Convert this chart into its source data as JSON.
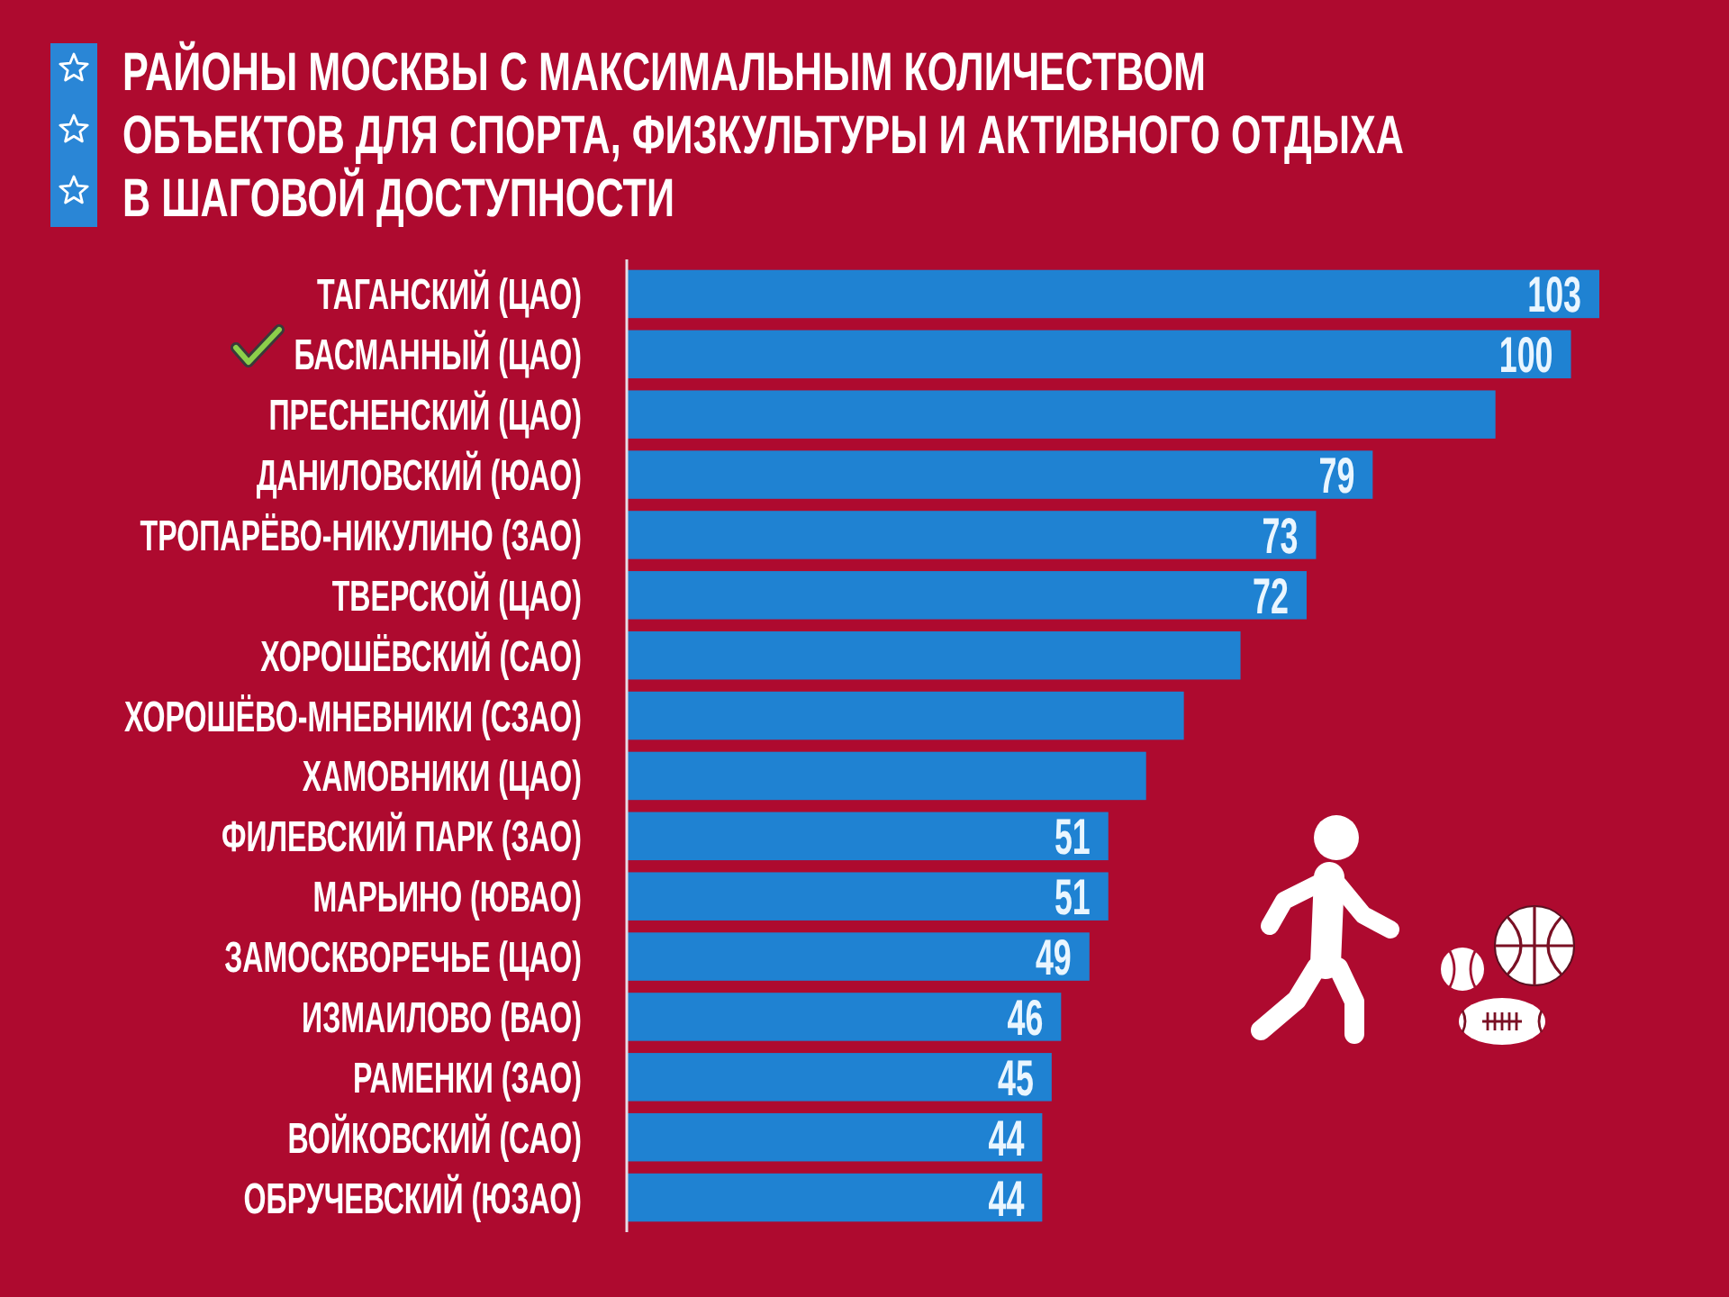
{
  "chart_data": {
    "type": "bar",
    "orientation": "horizontal",
    "title": "РАЙОНЫ МОСКВЫ С МАКСИМАЛЬНЫМ КОЛИЧЕСТВОМ\nОБЪЕКТОВ ДЛЯ СПОРТА, ФИЗКУЛЬТУРЫ И АКТИВНОГО ОТДЫХА\nВ ШАГОВОЙ ДОСТУПНОСТИ",
    "categories": [
      "ТАГАНСКИЙ (ЦАО)",
      "БАСМАННЫЙ (ЦАО)",
      "ПРЕСНЕНСКИЙ (ЦАО)",
      "ДАНИЛОВСКИЙ (ЮАО)",
      "ТРОПАРЁВО-НИКУЛИНО (ЗАО)",
      "ТВЕРСКОЙ (ЦАО)",
      "ХОРОШЁВСКИЙ (САО)",
      "ХОРОШЁВО-МНЕВНИКИ (СЗАО)",
      "ХАМОВНИКИ (ЦАО)",
      "ФИЛЕВСКИЙ ПАРК (ЗАО)",
      "МАРЬИНО (ЮВАО)",
      "ЗАМОСКВОРЕЧЬЕ (ЦАО)",
      "ИЗМАИЛОВО (ВАО)",
      "РАМЕНКИ (ЗАО)",
      "ВОЙКОВСКИЙ (САО)",
      "ОБРУЧЕВСКИЙ (ЮЗАО)"
    ],
    "values": [
      103,
      100,
      92,
      79,
      73,
      72,
      65,
      59,
      55,
      51,
      51,
      49,
      46,
      45,
      44,
      44
    ],
    "color": "#1f82d2",
    "value_labels": [
      "103",
      "100",
      null,
      "79",
      "73",
      "72",
      null,
      null,
      null,
      "51",
      "51",
      "49",
      "46",
      "45",
      "44",
      "44"
    ]
  }
}
